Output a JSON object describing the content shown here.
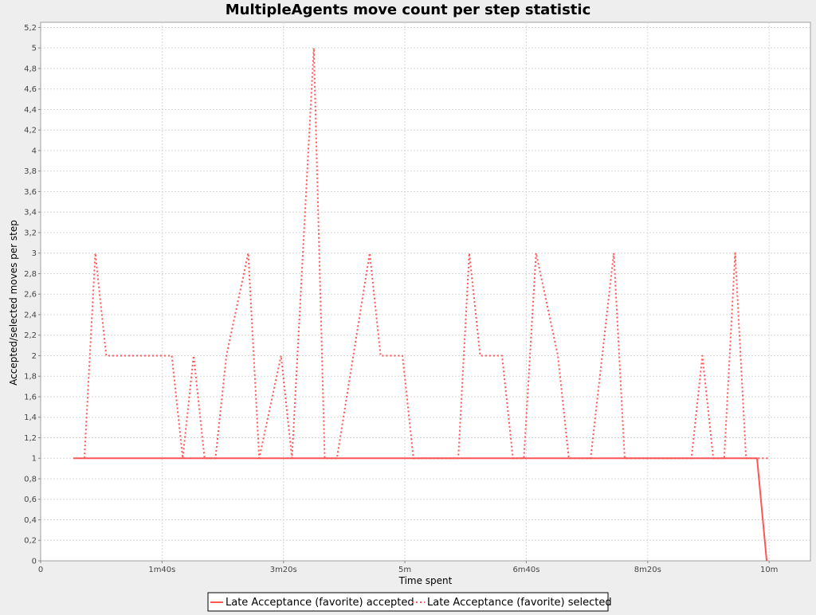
{
  "chart_data": {
    "type": "line",
    "title": "MultipleAgents move count per step statistic",
    "xlabel": "Time spent",
    "ylabel": "Accepted/selected moves per step",
    "xlim": [
      0,
      634
    ],
    "ylim": [
      0,
      5.25
    ],
    "x_ticks": [
      {
        "value": 0,
        "label": "0"
      },
      {
        "value": 100,
        "label": "1m40s"
      },
      {
        "value": 200,
        "label": "3m20s"
      },
      {
        "value": 300,
        "label": "5m"
      },
      {
        "value": 400,
        "label": "6m40s"
      },
      {
        "value": 500,
        "label": "8m20s"
      },
      {
        "value": 600,
        "label": "10m"
      }
    ],
    "y_ticks": [
      {
        "value": 0,
        "label": "0"
      },
      {
        "value": 0.2,
        "label": "0,2"
      },
      {
        "value": 0.4,
        "label": "0,4"
      },
      {
        "value": 0.6,
        "label": "0,6"
      },
      {
        "value": 0.8,
        "label": "0,8"
      },
      {
        "value": 1,
        "label": "1"
      },
      {
        "value": 1.2,
        "label": "1,2"
      },
      {
        "value": 1.4,
        "label": "1,4"
      },
      {
        "value": 1.6,
        "label": "1,6"
      },
      {
        "value": 1.8,
        "label": "1,8"
      },
      {
        "value": 2,
        "label": "2"
      },
      {
        "value": 2.2,
        "label": "2,2"
      },
      {
        "value": 2.4,
        "label": "2,4"
      },
      {
        "value": 2.6,
        "label": "2,6"
      },
      {
        "value": 2.8,
        "label": "2,8"
      },
      {
        "value": 3,
        "label": "3"
      },
      {
        "value": 3.2,
        "label": "3,2"
      },
      {
        "value": 3.4,
        "label": "3,4"
      },
      {
        "value": 3.6,
        "label": "3,6"
      },
      {
        "value": 3.8,
        "label": "3,8"
      },
      {
        "value": 4,
        "label": "4"
      },
      {
        "value": 4.2,
        "label": "4,2"
      },
      {
        "value": 4.4,
        "label": "4,4"
      },
      {
        "value": 4.6,
        "label": "4,6"
      },
      {
        "value": 4.8,
        "label": "4,8"
      },
      {
        "value": 5,
        "label": "5"
      },
      {
        "value": 5.2,
        "label": "5,2"
      }
    ],
    "grid": true,
    "legend_position": "bottom",
    "series": [
      {
        "name": "Late Acceptance (favorite) accepted",
        "color": "#ff5555",
        "style": "solid",
        "points": [
          [
            27,
            1
          ],
          [
            590,
            1
          ],
          [
            598,
            0
          ]
        ]
      },
      {
        "name": "Late Acceptance (favorite) selected",
        "color": "#ff5555",
        "style": "dotted",
        "points": [
          [
            36,
            1
          ],
          [
            45,
            3
          ],
          [
            54,
            2
          ],
          [
            63,
            2
          ],
          [
            81,
            2
          ],
          [
            99,
            2
          ],
          [
            108,
            2
          ],
          [
            117,
            1
          ],
          [
            126,
            2
          ],
          [
            135,
            1
          ],
          [
            144,
            1
          ],
          [
            153,
            2
          ],
          [
            171,
            3
          ],
          [
            180,
            1
          ],
          [
            198,
            2
          ],
          [
            207,
            1
          ],
          [
            225,
            5
          ],
          [
            234,
            1
          ],
          [
            244,
            1
          ],
          [
            271,
            3
          ],
          [
            280,
            2
          ],
          [
            298,
            2
          ],
          [
            307,
            1
          ],
          [
            344,
            1
          ],
          [
            353,
            3
          ],
          [
            362,
            2
          ],
          [
            380,
            2
          ],
          [
            389,
            1
          ],
          [
            398,
            1
          ],
          [
            408,
            3
          ],
          [
            426,
            2
          ],
          [
            435,
            1
          ],
          [
            453,
            1
          ],
          [
            472,
            3
          ],
          [
            481,
            1
          ],
          [
            536,
            1
          ],
          [
            545,
            2
          ],
          [
            554,
            1
          ],
          [
            563,
            1
          ],
          [
            572,
            3
          ],
          [
            581,
            1
          ],
          [
            599,
            1
          ]
        ]
      }
    ]
  }
}
